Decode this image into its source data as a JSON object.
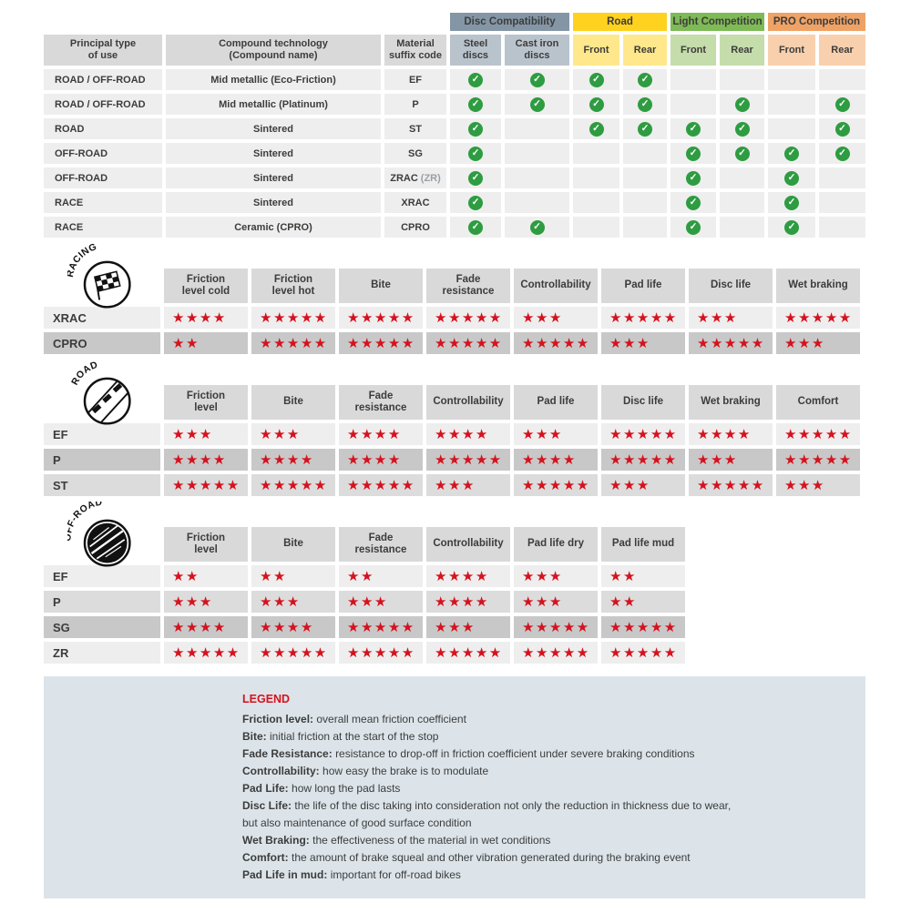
{
  "icons": {
    "check": "✓",
    "star": "★"
  },
  "colors": {
    "accent_red": "#d5121e",
    "check_green": "#2e9c41",
    "header_gray": "#d9d9d9",
    "row_light": "#eeeeee",
    "row_medium": "#dcdcdc",
    "row_dark": "#c8c8c8",
    "legend_bg": "#dce4ea",
    "text": "#3c3c3b"
  },
  "chart_data": [
    {
      "type": "table",
      "name": "compound-compatibility",
      "group_headers": [
        {
          "label": "Disc Compatibility",
          "bg": "#8496a6",
          "sub_bg": "#b9c3cc"
        },
        {
          "label": "Road",
          "bg": "#ffd21f",
          "sub_bg": "#ffe88c"
        },
        {
          "label": "Light Competition",
          "bg": "#7eba55",
          "sub_bg": "#c5dcab"
        },
        {
          "label": "PRO Competition",
          "bg": "#efa266",
          "sub_bg": "#f8d0ad"
        }
      ],
      "columns": [
        "Principal type\nof use",
        "Compound technology\n(Compound name)",
        "Material\nsuffix code",
        "Steel\ndiscs",
        "Cast iron\ndiscs",
        "Front",
        "Rear",
        "Front",
        "Rear",
        "Front",
        "Rear"
      ],
      "rows": [
        {
          "use": "ROAD / OFF-ROAD",
          "tech": "Mid metallic (Eco-Friction)",
          "code": "EF",
          "checks": [
            1,
            1,
            1,
            1,
            0,
            0,
            0,
            0
          ]
        },
        {
          "use": "ROAD / OFF-ROAD",
          "tech": "Mid metallic (Platinum)",
          "code": "P",
          "checks": [
            1,
            1,
            1,
            1,
            0,
            1,
            0,
            1
          ]
        },
        {
          "use": "ROAD",
          "tech": "Sintered",
          "code": "ST",
          "checks": [
            1,
            0,
            1,
            1,
            1,
            1,
            0,
            1
          ]
        },
        {
          "use": "OFF-ROAD",
          "tech": "Sintered",
          "code": "SG",
          "checks": [
            1,
            0,
            0,
            0,
            1,
            1,
            1,
            1
          ]
        },
        {
          "use": "OFF-ROAD",
          "tech": "Sintered",
          "code": "ZRAC",
          "code_note": "(ZR)",
          "checks": [
            1,
            0,
            0,
            0,
            1,
            0,
            1,
            0
          ]
        },
        {
          "use": "RACE",
          "tech": "Sintered",
          "code": "XRAC",
          "checks": [
            1,
            0,
            0,
            0,
            1,
            0,
            1,
            0
          ]
        },
        {
          "use": "RACE",
          "tech": "Ceramic (CPRO)",
          "code": "CPRO",
          "checks": [
            1,
            1,
            0,
            0,
            1,
            0,
            1,
            0
          ]
        }
      ]
    },
    {
      "type": "table",
      "name": "racing-ratings",
      "section_label": "RACING",
      "star_scale_max": 5,
      "columns": [
        "Friction\nlevel cold",
        "Friction\nlevel hot",
        "Bite",
        "Fade\nresistance",
        "Controllability",
        "Pad life",
        "Disc life",
        "Wet braking"
      ],
      "rows": [
        {
          "label": "XRAC",
          "shade": "light",
          "stars": [
            4,
            5,
            5,
            5,
            3,
            5,
            3,
            5
          ]
        },
        {
          "label": "CPRO",
          "shade": "dark",
          "stars": [
            2,
            5,
            5,
            5,
            5,
            3,
            5,
            3
          ]
        }
      ]
    },
    {
      "type": "table",
      "name": "road-ratings",
      "section_label": "ROAD",
      "star_scale_max": 5,
      "columns": [
        "Friction\nlevel",
        "Bite",
        "Fade\nresistance",
        "Controllability",
        "Pad life",
        "Disc life",
        "Wet braking",
        "Comfort"
      ],
      "rows": [
        {
          "label": "EF",
          "shade": "light",
          "stars": [
            3,
            3,
            4,
            4,
            3,
            5,
            4,
            5
          ]
        },
        {
          "label": "P",
          "shade": "dark",
          "stars": [
            4,
            4,
            4,
            5,
            4,
            5,
            3,
            5
          ]
        },
        {
          "label": "ST",
          "shade": "medium",
          "stars": [
            5,
            5,
            5,
            3,
            5,
            3,
            5,
            3
          ]
        }
      ]
    },
    {
      "type": "table",
      "name": "offroad-ratings",
      "section_label": "OFF-ROAD",
      "star_scale_max": 5,
      "columns": [
        "Friction\nlevel",
        "Bite",
        "Fade\nresistance",
        "Controllability",
        "Pad life dry",
        "Pad life mud"
      ],
      "rows": [
        {
          "label": "EF",
          "shade": "light",
          "stars": [
            2,
            2,
            2,
            4,
            3,
            2
          ]
        },
        {
          "label": "P",
          "shade": "medium",
          "stars": [
            3,
            3,
            3,
            4,
            3,
            2
          ]
        },
        {
          "label": "SG",
          "shade": "dark",
          "stars": [
            4,
            4,
            5,
            3,
            5,
            5
          ]
        },
        {
          "label": "ZR",
          "shade": "light",
          "stars": [
            5,
            5,
            5,
            5,
            5,
            5
          ]
        }
      ]
    }
  ],
  "legend": {
    "title": "LEGEND",
    "items": [
      {
        "term": "Friction level:",
        "def": "overall mean friction coefficient"
      },
      {
        "term": "Bite:",
        "def": "initial friction at the start of the stop"
      },
      {
        "term": "Fade Resistance:",
        "def": "resistance to drop-off in friction coefficient under severe braking conditions"
      },
      {
        "term": "Controllability:",
        "def": "how easy the brake is to modulate"
      },
      {
        "term": "Pad Life:",
        "def": "how long the pad lasts"
      },
      {
        "term": "Disc Life:",
        "def": "the life of the disc taking into consideration not only the reduction in thickness due to wear,"
      },
      {
        "term": "",
        "def": "but also maintenance of good surface condition"
      },
      {
        "term": "Wet Braking:",
        "def": "the effectiveness of the material in wet conditions"
      },
      {
        "term": "Comfort:",
        "def": "the amount of brake squeal and other vibration generated during the braking event"
      },
      {
        "term": "Pad Life in mud:",
        "def": "important for off-road bikes"
      }
    ]
  }
}
